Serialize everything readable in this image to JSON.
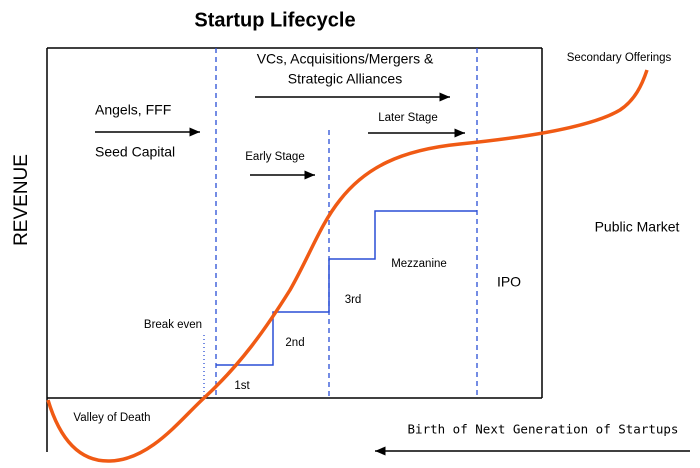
{
  "title": "Startup Lifecycle",
  "y_axis_label": "REVENUE",
  "labels": {
    "angels": "Angels, FFF",
    "seed": "Seed Capital",
    "vcs_line1": "VCs, Acquisitions/Mergers &",
    "vcs_line2": "Strategic Alliances",
    "early": "Early Stage",
    "later": "Later Stage",
    "secondary": "Secondary Offerings",
    "public": "Public Market",
    "mezzanine": "Mezzanine",
    "ipo": "IPO",
    "third": "3rd",
    "second": "2nd",
    "first": "1st",
    "break_even": "Break even",
    "valley": "Valley of Death",
    "birth": "Birth of Next Generation of Startups"
  }
}
